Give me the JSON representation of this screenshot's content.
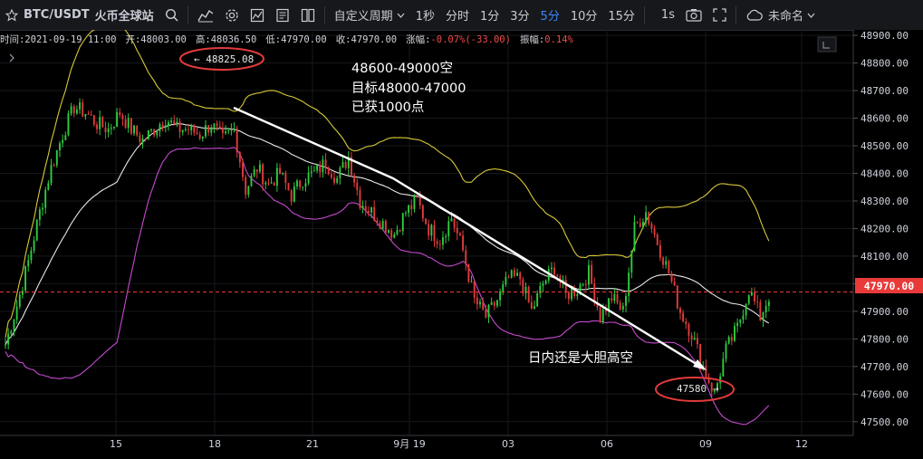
{
  "toolbar": {
    "symbol": "BTC/USDT",
    "exchange": "火币全球站",
    "custom_period": "自定义周期",
    "intervals": [
      "1秒",
      "分时",
      "1分",
      "3分",
      "5分",
      "10分",
      "15分"
    ],
    "active_interval": "5分",
    "interval_1s": "1s",
    "layout_name": "未命名",
    "colors": {
      "active": "#3d86ff"
    }
  },
  "infobar": {
    "time": "时间:2021-09-19 11:00",
    "open": "开:48003.00",
    "high": "高:48036.50",
    "low": "低:47970.00",
    "close": "收:47970.00",
    "change_label": "涨幅:",
    "change_value": "-0.07%(-33.00)",
    "amplitude_label": "振幅:",
    "amplitude_value": "0.14%"
  },
  "annotations": {
    "line1": "48600-49000空",
    "line2": "目标48000-47000",
    "line3": "已获1000点",
    "intraday": "日内还是大胆高空",
    "high_marker": "← 48825.08",
    "low_marker": "47580 →"
  },
  "chart_data": {
    "type": "candlestick",
    "y_ticks": [
      "48900.00",
      "48800.00",
      "48700.00",
      "48600.00",
      "48500.00",
      "48400.00",
      "48300.00",
      "48200.00",
      "48100.00",
      "48000.00",
      "47900.00",
      "47800.00",
      "47700.00",
      "47600.00",
      "47500.00"
    ],
    "ylim": [
      47450,
      48920
    ],
    "x_ticks": [
      "15",
      "18",
      "21",
      "9月 19",
      "03",
      "06",
      "09",
      "12"
    ],
    "last_price": "47970.00",
    "marked_high": 48825.08,
    "marked_low": 47580,
    "colors": {
      "up": "#2ecc40",
      "down": "#e23b3b",
      "upper_band": "#d8c838",
      "lower_band": "#c64ad0",
      "mid_band": "#e8e8e8",
      "last_price": "#e93a3a"
    },
    "close_path": [
      47780,
      47920,
      48080,
      48260,
      48420,
      48540,
      48640,
      48620,
      48580,
      48560,
      48620,
      48560,
      48520,
      48560,
      48600,
      48560,
      48560,
      48540,
      48580,
      48520,
      48560,
      48340,
      48420,
      48360,
      48400,
      48320,
      48380,
      48400,
      48440,
      48380,
      48460,
      48300,
      48260,
      48220,
      48180,
      48260,
      48300,
      48200,
      48160,
      48240,
      48120,
      47940,
      47880,
      47940,
      48020,
      48020,
      47900,
      48000,
      48060,
      47960,
      47980,
      48040,
      47880,
      47950,
      47900,
      48200,
      48260,
      48150,
      48040,
      47900,
      47820,
      47700,
      47600,
      47760,
      47840,
      47980,
      47880,
      47980
    ]
  }
}
